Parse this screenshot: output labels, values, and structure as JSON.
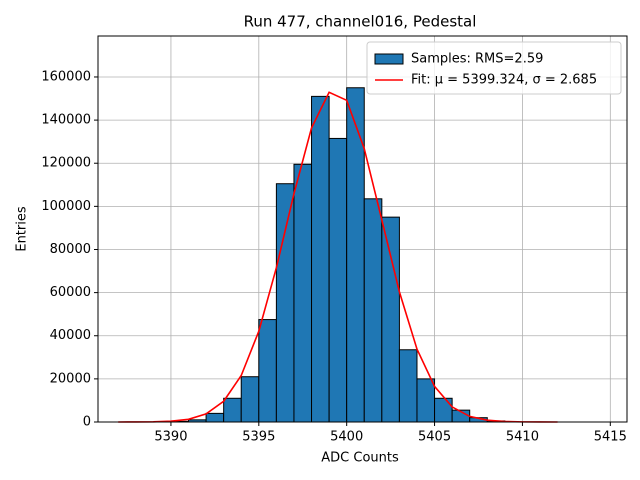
{
  "chart_data": {
    "type": "histogram",
    "title": "Run 477, channel016, Pedestal",
    "x_label": "ADC Counts",
    "y_label": "Entries",
    "bins": [
      5390,
      5391,
      5392,
      5393,
      5394,
      5395,
      5396,
      5397,
      5398,
      5399,
      5400,
      5401,
      5402,
      5403,
      5404,
      5405,
      5406,
      5407,
      5408,
      5409
    ],
    "counts": [
      300,
      1000,
      4000,
      11000,
      21000,
      47500,
      110500,
      119500,
      151000,
      131500,
      155000,
      103500,
      95000,
      33500,
      20000,
      11000,
      5500,
      2000,
      500
    ],
    "hist_name": "Samples: RMS=2.59",
    "hist_color": "#1f77b4",
    "edge_color": "#000000",
    "fit": {
      "name": "Fit: μ = 5399.324, σ = 2.685",
      "color": "#ff0000",
      "x": [
        5387,
        5388,
        5389,
        5390,
        5391,
        5392,
        5393,
        5394,
        5395,
        5396,
        5397,
        5398,
        5399,
        5400,
        5401,
        5402,
        5403,
        5404,
        5405,
        5406,
        5407,
        5408,
        5409,
        5410,
        5411,
        5412
      ],
      "values": [
        4,
        21,
        95,
        371,
        1260,
        3733,
        9616,
        21560,
        42100,
        71560,
        105880,
        136370,
        152880,
        149190,
        126740,
        93720,
        60320,
        33800,
        16490,
        6998,
        2586,
        832,
        233,
        57,
        12,
        2
      ]
    },
    "xlim": [
      5385.85,
      5415.95
    ],
    "ylim": [
      0,
      179000
    ],
    "xticks": [
      5390,
      5395,
      5400,
      5405,
      5410,
      5415
    ],
    "yticks": [
      0,
      20000,
      40000,
      60000,
      80000,
      100000,
      120000,
      140000,
      160000
    ],
    "grid": true,
    "legend": "upper right"
  }
}
